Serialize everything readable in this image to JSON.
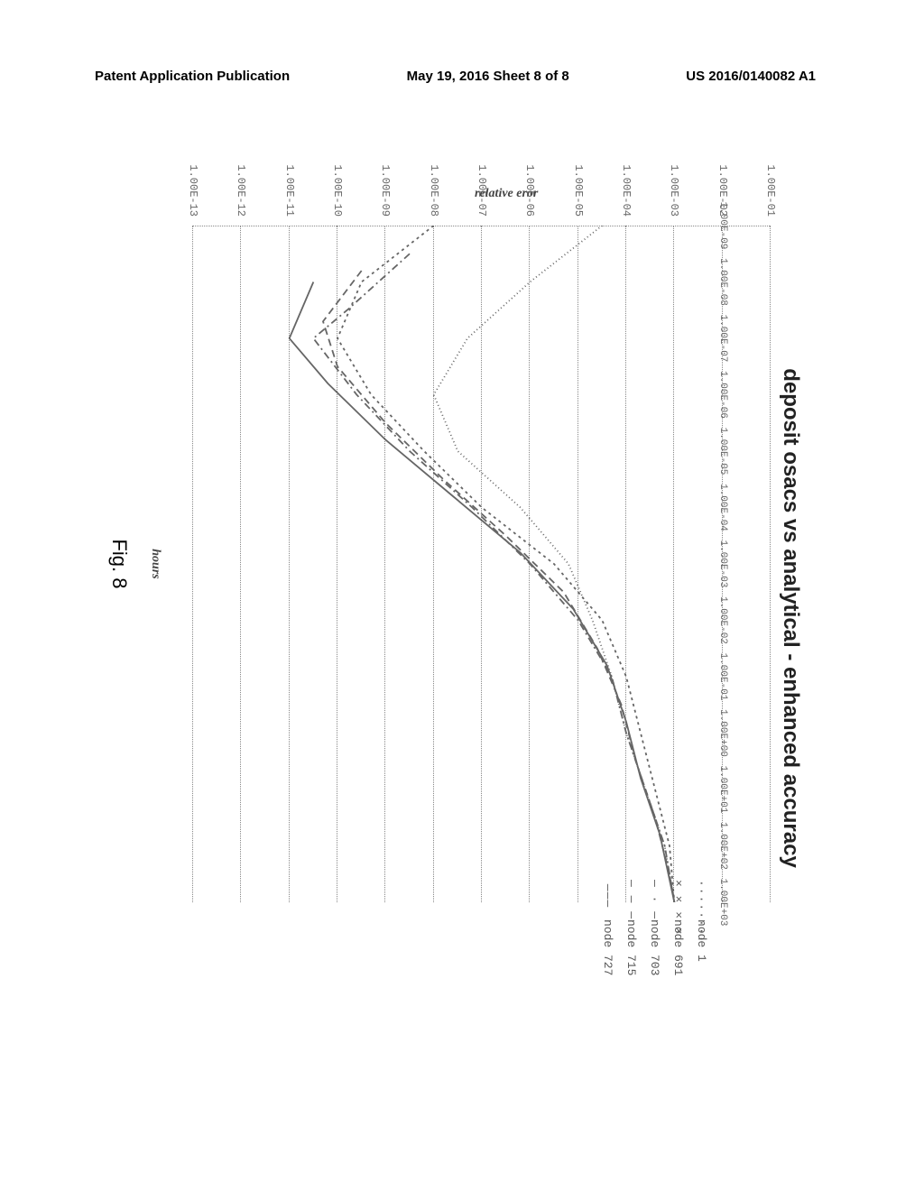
{
  "header": {
    "left": "Patent Application Publication",
    "center": "May 19, 2016  Sheet 8 of 8",
    "right": "US 2016/0140082 A1"
  },
  "figure": {
    "caption": "Fig. 8",
    "chart": {
      "type": "line",
      "title": "deposit osacs vs analytical - enhanced accuracy",
      "x_axis_label": "hours",
      "y_axis_label": "relative eror",
      "x_tick_labels": [
        "1.00E-09",
        "1.00E-08",
        "1.00E-07",
        "1.00E-06",
        "1.00E-05",
        "1.00E-04",
        "1.00E-03",
        "1.00E-02",
        "1.00E-01",
        "1.00E+00",
        "1.00E+01",
        "1.00E+02",
        "1.00E+03"
      ],
      "y_tick_labels": [
        "1.00E-01",
        "1.00E-02",
        "1.00E-03",
        "1.00E-04",
        "1.00E-05",
        "1.00E-06",
        "1.00E-07",
        "1.00E-08",
        "1.00E-09",
        "1.00E-10",
        "1.00E-11",
        "1.00E-12",
        "1.00E-13"
      ],
      "x_log_range": [
        -9,
        3
      ],
      "y_log_range": [
        -1,
        -13
      ],
      "grid_color": "#888888",
      "background_color": "#ffffff",
      "tick_font_size": 12,
      "title_font_size": 24,
      "line_color": "#666666",
      "legend": {
        "items": [
          {
            "swatch": "········",
            "label": "node 1"
          },
          {
            "swatch": "× × × ×",
            "label": "node 691"
          },
          {
            "swatch": "— · —",
            "label": "node 703"
          },
          {
            "swatch": "— — —",
            "label": "node 715"
          },
          {
            "swatch": "———",
            "label": "node 727"
          }
        ]
      },
      "series": [
        {
          "name": "node 1",
          "dash": "1,3",
          "points": [
            [
              -9,
              -4.5
            ],
            [
              -8,
              -6.0
            ],
            [
              -7,
              -7.3
            ],
            [
              -6,
              -8.0
            ],
            [
              -5,
              -7.5
            ],
            [
              -4,
              -6.2
            ],
            [
              -3,
              -5.2
            ],
            [
              -2,
              -4.7
            ],
            [
              -1,
              -4.3
            ],
            [
              0,
              -4.0
            ],
            [
              1,
              -3.6
            ],
            [
              2,
              -3.2
            ],
            [
              3,
              -3.0
            ]
          ]
        },
        {
          "name": "node 691",
          "dash": "3,4",
          "points": [
            [
              -9,
              -8.0
            ],
            [
              -8,
              -9.5
            ],
            [
              -7,
              -10.0
            ],
            [
              -6,
              -9.3
            ],
            [
              -5,
              -8.2
            ],
            [
              -4,
              -7.0
            ],
            [
              -3,
              -5.5
            ],
            [
              -2,
              -4.5
            ],
            [
              -1,
              -4.0
            ],
            [
              0,
              -3.7
            ],
            [
              1,
              -3.4
            ],
            [
              2,
              -3.1
            ],
            [
              3,
              -3.0
            ]
          ]
        },
        {
          "name": "node 703",
          "dash": "8,4,2,4",
          "points": [
            [
              -8.5,
              -8.5
            ],
            [
              -7.5,
              -9.8
            ],
            [
              -7,
              -10.5
            ],
            [
              -6,
              -9.6
            ],
            [
              -5,
              -8.5
            ],
            [
              -4,
              -7.2
            ],
            [
              -3,
              -6.0
            ],
            [
              -2,
              -5.0
            ],
            [
              -1,
              -4.3
            ],
            [
              0,
              -4.0
            ],
            [
              1,
              -3.6
            ],
            [
              2,
              -3.2
            ],
            [
              3,
              -3.0
            ]
          ]
        },
        {
          "name": "node 715",
          "dash": "8,5",
          "points": [
            [
              -8.2,
              -9.5
            ],
            [
              -7.3,
              -10.3
            ],
            [
              -6.5,
              -10.0
            ],
            [
              -5.5,
              -9.0
            ],
            [
              -4.5,
              -7.8
            ],
            [
              -3.5,
              -6.5
            ],
            [
              -2.5,
              -5.3
            ],
            [
              -1.5,
              -4.6
            ],
            [
              -0.5,
              -4.1
            ],
            [
              0.5,
              -3.8
            ],
            [
              1.5,
              -3.4
            ],
            [
              2.5,
              -3.1
            ],
            [
              3,
              -3.0
            ]
          ]
        },
        {
          "name": "node 727",
          "dash": "none",
          "points": [
            [
              -8,
              -10.5
            ],
            [
              -7,
              -11.0
            ],
            [
              -6.2,
              -10.2
            ],
            [
              -5.2,
              -9.0
            ],
            [
              -4.2,
              -7.6
            ],
            [
              -3.2,
              -6.2
            ],
            [
              -2.2,
              -5.1
            ],
            [
              -1.2,
              -4.4
            ],
            [
              -0.2,
              -4.0
            ],
            [
              0.8,
              -3.7
            ],
            [
              1.8,
              -3.3
            ],
            [
              3,
              -3.0
            ]
          ]
        }
      ]
    }
  }
}
